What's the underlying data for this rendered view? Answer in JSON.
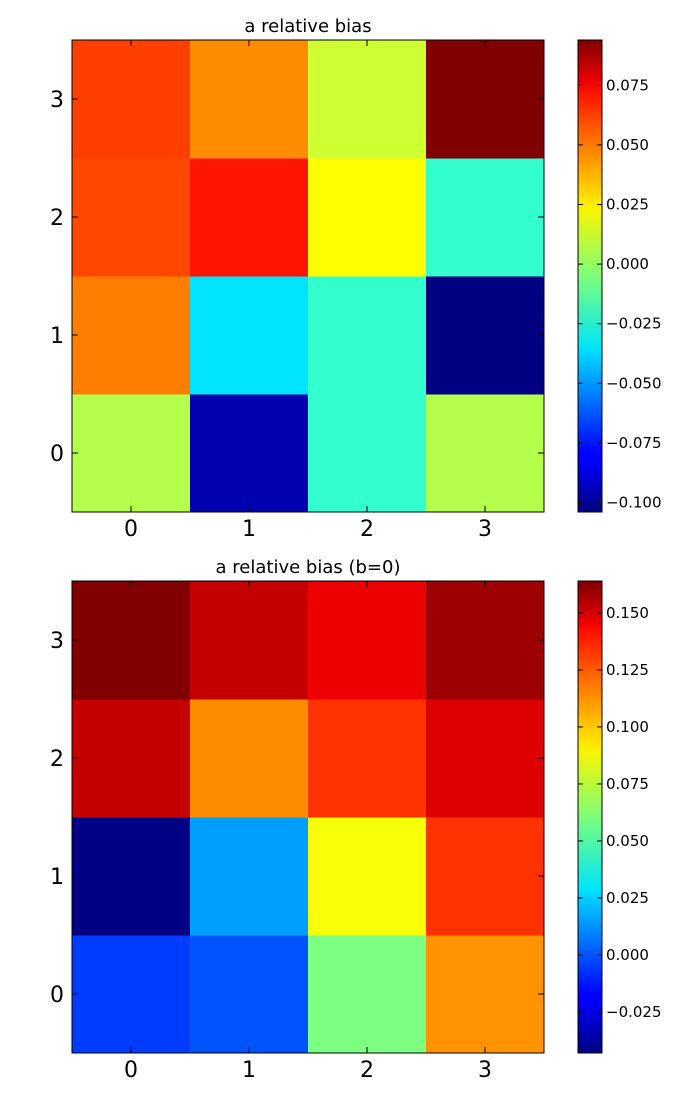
{
  "chart_data": [
    {
      "type": "heatmap",
      "title": "a relative bias",
      "x": [
        0,
        1,
        2,
        3
      ],
      "y": [
        0,
        1,
        2,
        3
      ],
      "xlabel": "",
      "ylabel": "",
      "x_tick_labels": [
        "0",
        "1",
        "2",
        "3"
      ],
      "y_tick_labels": [
        "0",
        "1",
        "2",
        "3"
      ],
      "colormap": "jet",
      "values": [
        [
          0.005,
          -0.095,
          -0.02,
          0.005
        ],
        [
          0.045,
          -0.035,
          -0.02,
          -0.104
        ],
        [
          0.055,
          0.065,
          0.02,
          -0.02
        ],
        [
          0.057,
          0.042,
          0.01,
          0.094
        ]
      ],
      "colorbar": {
        "range": [
          -0.104,
          0.094
        ],
        "ticks": [
          -0.1,
          -0.075,
          -0.05,
          -0.025,
          0.0,
          0.025,
          0.05,
          0.075
        ],
        "tick_labels": [
          "−0.100",
          "−0.075",
          "−0.050",
          "−0.025",
          "0.000",
          "0.025",
          "0.050",
          "0.075"
        ]
      }
    },
    {
      "type": "heatmap",
      "title": "a relative bias (b=0)",
      "x": [
        0,
        1,
        2,
        3
      ],
      "y": [
        0,
        1,
        2,
        3
      ],
      "xlabel": "",
      "ylabel": "",
      "x_tick_labels": [
        "0",
        "1",
        "2",
        "3"
      ],
      "y_tick_labels": [
        "0",
        "1",
        "2",
        "3"
      ],
      "colormap": "jet",
      "values": [
        [
          -0.005,
          0.0,
          0.06,
          0.108
        ],
        [
          -0.042,
          0.015,
          0.085,
          0.128
        ],
        [
          0.15,
          0.11,
          0.128,
          0.145
        ],
        [
          0.164,
          0.15,
          0.142,
          0.158
        ]
      ],
      "colorbar": {
        "range": [
          -0.043,
          0.164
        ],
        "ticks": [
          -0.025,
          0.0,
          0.025,
          0.05,
          0.075,
          0.1,
          0.125,
          0.15
        ],
        "tick_labels": [
          "−0.025",
          "0.000",
          "0.025",
          "0.050",
          "0.075",
          "0.100",
          "0.125",
          "0.150"
        ]
      }
    }
  ]
}
